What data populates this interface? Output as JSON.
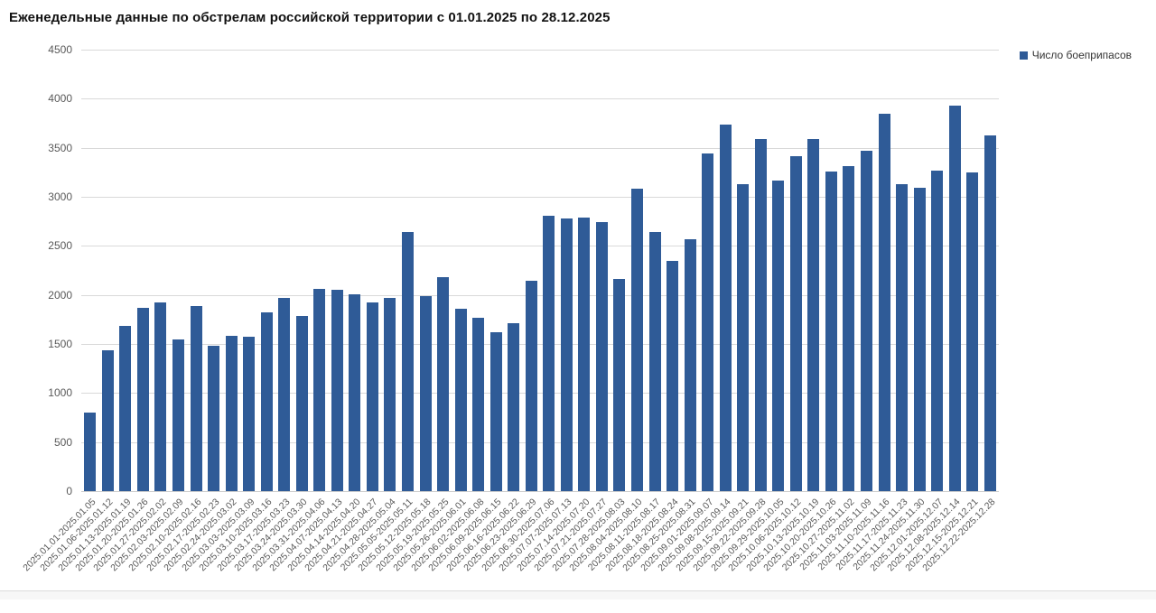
{
  "title": "Еженедельные данные по обстрелам российской территории с 01.01.2025 по 28.12.2025",
  "legend": {
    "label": "Число боеприпасов",
    "swatch_color": "#2f5b97"
  },
  "chart_data": {
    "type": "bar",
    "title": "Еженедельные данные по обстрелам российской территории с 01.01.2025 по 28.12.2025",
    "series_name": "Число боеприпасов",
    "xlabel": "",
    "ylabel": "",
    "ylim": [
      0,
      4500
    ],
    "ytick_step": 500,
    "yticks": [
      0,
      500,
      1000,
      1500,
      2000,
      2500,
      3000,
      3500,
      4000,
      4500
    ],
    "grid": true,
    "legend_position": "top-right",
    "bar_color": "#2f5b97",
    "categories": [
      "2025.01.01-2025.01.05",
      "2025.01.06-2025.01.12",
      "2025.01.13-2025.01.19",
      "2025.01.20-2025.01.26",
      "2025.01.27-2025.02.02",
      "2025.02.03-2025.02.09",
      "2025.02.10-2025.02.16",
      "2025.02.17-2025.02.23",
      "2025.02.24-2025.03.02",
      "2025.03.03-2025.03.09",
      "2025.03.10-2025.03.16",
      "2025.03.17-2025.03.23",
      "2025.03.24-2025.03.30",
      "2025.03.31-2025.04.06",
      "2025.04.07-2025.04.13",
      "2025.04.14-2025.04.20",
      "2025.04.21-2025.04.27",
      "2025.04.28-2025.05.04",
      "2025.05.05-2025.05.11",
      "2025.05.12-2025.05.18",
      "2025.05.19-2025.05.25",
      "2025.05.26-2025.06.01",
      "2025.06.02-2025.06.08",
      "2025.06.09-2025.06.15",
      "2025.06.16-2025.06.22",
      "2025.06.23-2025.06.29",
      "2025.06.30-2025.07.06",
      "2025.07.07-2025.07.13",
      "2025.07.14-2025.07.20",
      "2025.07.21-2025.07.27",
      "2025.07.28-2025.08.03",
      "2025.08.04-2025.08.10",
      "2025.08.11-2025.08.17",
      "2025.08.18-2025.08.24",
      "2025.08.25-2025.08.31",
      "2025.09.01-2025.09.07",
      "2025.09.08-2025.09.14",
      "2025.09.15-2025.09.21",
      "2025.09.22-2025.09.28",
      "2025.09.29-2025.10.05",
      "2025.10.06-2025.10.12",
      "2025.10.13-2025.10.19",
      "2025.10.20-2025.10.26",
      "2025.10.27-2025.11.02",
      "2025.11.03-2025.11.09",
      "2025.11.10-2025.11.16",
      "2025.11.17-2025.11.23",
      "2025.11.24-2025.11.30",
      "2025.12.01-2025.12.07",
      "2025.12.08-2025.12.14",
      "2025.12.15-2025.12.21",
      "2025.12.22-2025.12.28"
    ],
    "values": [
      800,
      1440,
      1680,
      1870,
      1920,
      1550,
      1890,
      1480,
      1580,
      1570,
      1820,
      1970,
      1790,
      2060,
      2050,
      2010,
      1920,
      1970,
      2640,
      1990,
      2180,
      1860,
      1770,
      1620,
      1710,
      2140,
      2810,
      2780,
      2790,
      2740,
      2160,
      3080,
      2640,
      2350,
      2570,
      3440,
      3740,
      3130,
      3590,
      3170,
      3410,
      3590,
      3260,
      3310,
      3470,
      3850,
      3130,
      3090,
      3270,
      3930,
      3250,
      3630
    ]
  }
}
